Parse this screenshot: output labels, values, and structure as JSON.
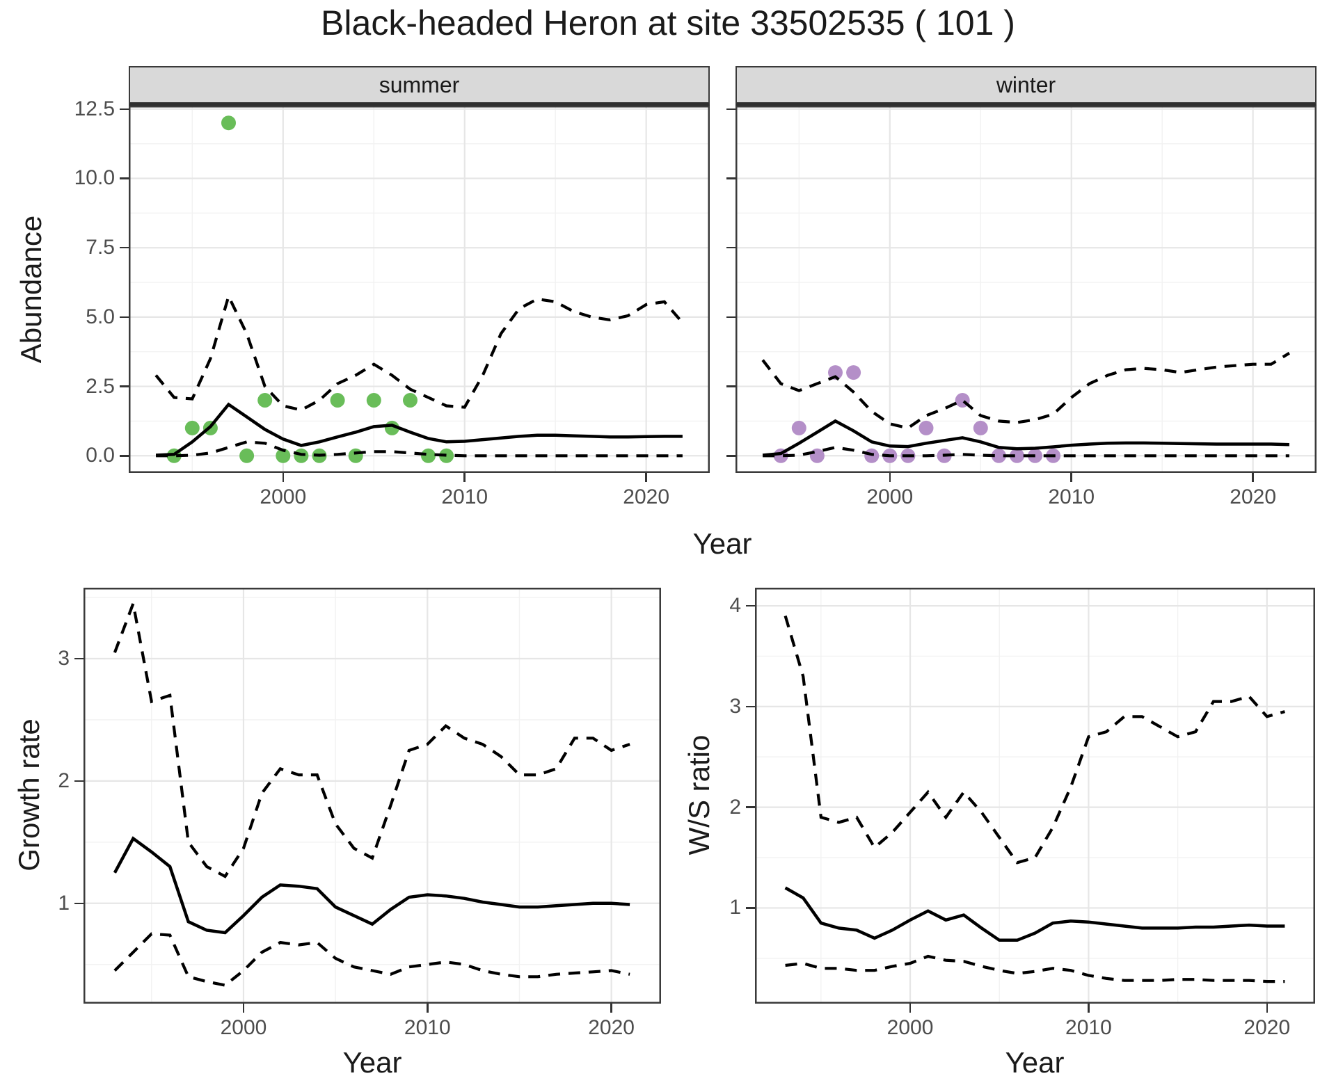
{
  "title": "Black-headed Heron at site 33502535 ( 101 )",
  "labels": {
    "facet_summer": "summer",
    "facet_winter": "winter",
    "y_axis_abundance": "Abundance",
    "y_axis_growth": "Growth rate",
    "y_axis_ws": "W/S ratio",
    "x_axis_top": "Year",
    "x_axis_growth": "Year",
    "x_axis_ws": "Year"
  },
  "colors": {
    "summer_points": "#69bd59",
    "winter_points": "#b48fc8",
    "line": "#000000",
    "strip_background": "#d9d9d9",
    "panel_border": "#3a3a3a",
    "grid_major": "#e6e6e6",
    "grid_minor": "#f2f2f2",
    "tick_text": "#4d4d4d"
  },
  "chart_data": [
    {
      "id": "abundance_summer",
      "type": "scatter",
      "facet": "summer",
      "xlabel": "Year",
      "ylabel": "Abundance",
      "xlim": [
        1991.5,
        2023.5
      ],
      "ylim": [
        -0.62,
        12.62
      ],
      "xticks": [
        2000,
        2010,
        2020
      ],
      "xtick_labels": [
        "2000",
        "2010",
        "2020"
      ],
      "xticks_minor": [
        1995,
        2005,
        2015
      ],
      "yticks": [
        0,
        2.5,
        5,
        7.5,
        10,
        12.5
      ],
      "ytick_labels": [
        "0.0",
        "2.5",
        "5.0",
        "7.5",
        "10.0",
        "12.5"
      ],
      "yticks_minor": [
        1.25,
        3.75,
        6.25,
        8.75,
        11.25
      ],
      "show_ytick_labels": true,
      "point_color": "#69bd59",
      "points": {
        "x": [
          1994,
          1995,
          1996,
          1997,
          1998,
          1999,
          2000,
          2001,
          2002,
          2003,
          2004,
          2005,
          2006,
          2007,
          2008,
          2009
        ],
        "y": [
          0,
          1,
          1,
          12,
          0,
          2,
          0,
          0,
          0,
          2,
          0,
          2,
          1,
          2,
          0,
          0
        ]
      },
      "series": [
        {
          "name": "mean",
          "style": "solid",
          "x": [
            1993,
            1994,
            1995,
            1996,
            1997,
            1998,
            1999,
            2000,
            2001,
            2002,
            2003,
            2004,
            2005,
            2006,
            2007,
            2008,
            2009,
            2010,
            2011,
            2012,
            2013,
            2014,
            2015,
            2016,
            2017,
            2018,
            2019,
            2020,
            2021,
            2022
          ],
          "y": [
            0.02,
            0.05,
            0.5,
            1.05,
            1.85,
            1.4,
            0.95,
            0.6,
            0.37,
            0.5,
            0.68,
            0.85,
            1.05,
            1.1,
            0.85,
            0.62,
            0.5,
            0.52,
            0.58,
            0.64,
            0.7,
            0.74,
            0.74,
            0.72,
            0.7,
            0.68,
            0.68,
            0.69,
            0.7,
            0.7
          ]
        },
        {
          "name": "upper_ci",
          "style": "dashed",
          "x": [
            1993,
            1994,
            1995,
            1996,
            1997,
            1998,
            1999,
            2000,
            2001,
            2002,
            2003,
            2004,
            2005,
            2006,
            2007,
            2008,
            2009,
            2010,
            2011,
            2012,
            2013,
            2014,
            2015,
            2016,
            2017,
            2018,
            2019,
            2020,
            2021,
            2022
          ],
          "y": [
            2.9,
            2.1,
            2.05,
            3.5,
            5.75,
            4.4,
            2.5,
            1.8,
            1.65,
            2.0,
            2.6,
            2.9,
            3.3,
            2.9,
            2.4,
            2.1,
            1.8,
            1.75,
            2.9,
            4.4,
            5.3,
            5.65,
            5.55,
            5.2,
            5.0,
            4.9,
            5.05,
            5.45,
            5.55,
            4.8
          ]
        },
        {
          "name": "lower_ci",
          "style": "dashed",
          "x": [
            1993,
            1994,
            1995,
            1996,
            1997,
            1998,
            1999,
            2000,
            2001,
            2002,
            2003,
            2004,
            2005,
            2006,
            2007,
            2008,
            2009,
            2010,
            2011,
            2012,
            2013,
            2014,
            2015,
            2016,
            2017,
            2018,
            2019,
            2020,
            2021,
            2022
          ],
          "y": [
            0,
            0,
            0.02,
            0.1,
            0.3,
            0.5,
            0.45,
            0.2,
            0.05,
            0.02,
            0.05,
            0.1,
            0.15,
            0.15,
            0.1,
            0.05,
            0.02,
            0,
            0,
            0,
            0,
            0,
            0,
            0,
            0,
            0,
            0,
            0,
            0,
            0
          ]
        }
      ]
    },
    {
      "id": "abundance_winter",
      "type": "scatter",
      "facet": "winter",
      "xlabel": "Year",
      "ylabel": "Abundance",
      "xlim": [
        1991.5,
        2023.5
      ],
      "ylim": [
        -0.62,
        12.62
      ],
      "xticks": [
        2000,
        2010,
        2020
      ],
      "xtick_labels": [
        "2000",
        "2010",
        "2020"
      ],
      "xticks_minor": [
        1995,
        2005,
        2015
      ],
      "yticks": [
        0,
        2.5,
        5,
        7.5,
        10,
        12.5
      ],
      "ytick_labels": [
        "0.0",
        "2.5",
        "5.0",
        "7.5",
        "10.0",
        "12.5"
      ],
      "yticks_minor": [
        1.25,
        3.75,
        6.25,
        8.75,
        11.25
      ],
      "show_ytick_labels": false,
      "point_color": "#b48fc8",
      "points": {
        "x": [
          1994,
          1995,
          1996,
          1997,
          1998,
          1999,
          2000,
          2001,
          2002,
          2003,
          2004,
          2005,
          2006,
          2007,
          2008,
          2009
        ],
        "y": [
          0,
          1,
          0,
          3,
          3,
          0,
          0,
          0,
          1,
          0,
          2,
          1,
          0,
          0,
          0,
          0
        ]
      },
      "series": [
        {
          "name": "mean",
          "style": "solid",
          "x": [
            1993,
            1994,
            1995,
            1996,
            1997,
            1998,
            1999,
            2000,
            2001,
            2002,
            2003,
            2004,
            2005,
            2006,
            2007,
            2008,
            2009,
            2010,
            2011,
            2012,
            2013,
            2014,
            2015,
            2016,
            2017,
            2018,
            2019,
            2020,
            2021,
            2022
          ],
          "y": [
            0.02,
            0.08,
            0.45,
            0.85,
            1.25,
            0.9,
            0.5,
            0.35,
            0.33,
            0.45,
            0.55,
            0.65,
            0.5,
            0.3,
            0.25,
            0.27,
            0.32,
            0.38,
            0.42,
            0.45,
            0.46,
            0.46,
            0.45,
            0.44,
            0.43,
            0.42,
            0.42,
            0.42,
            0.42,
            0.4
          ]
        },
        {
          "name": "upper_ci",
          "style": "dashed",
          "x": [
            1993,
            1994,
            1995,
            1996,
            1997,
            1998,
            1999,
            2000,
            2001,
            2002,
            2003,
            2004,
            2005,
            2006,
            2007,
            2008,
            2009,
            2010,
            2011,
            2012,
            2013,
            2014,
            2015,
            2016,
            2017,
            2018,
            2019,
            2020,
            2021,
            2022
          ],
          "y": [
            3.45,
            2.6,
            2.35,
            2.6,
            2.85,
            2.3,
            1.6,
            1.15,
            1.0,
            1.45,
            1.7,
            2.0,
            1.45,
            1.25,
            1.2,
            1.3,
            1.5,
            2.1,
            2.6,
            2.9,
            3.1,
            3.15,
            3.1,
            3.0,
            3.1,
            3.2,
            3.25,
            3.3,
            3.3,
            3.7
          ]
        },
        {
          "name": "lower_ci",
          "style": "dashed",
          "x": [
            1993,
            1994,
            1995,
            1996,
            1997,
            1998,
            1999,
            2000,
            2001,
            2002,
            2003,
            2004,
            2005,
            2006,
            2007,
            2008,
            2009,
            2010,
            2011,
            2012,
            2013,
            2014,
            2015,
            2016,
            2017,
            2018,
            2019,
            2020,
            2021,
            2022
          ],
          "y": [
            0,
            0,
            0.02,
            0.15,
            0.3,
            0.2,
            0.05,
            0,
            0,
            0,
            0.02,
            0.05,
            0.02,
            0,
            0,
            0,
            0,
            0,
            0,
            0,
            0,
            0,
            0,
            0,
            0,
            0,
            0,
            0,
            0,
            0
          ]
        }
      ]
    },
    {
      "id": "growth_rate",
      "type": "line",
      "xlabel": "Year",
      "ylabel": "Growth rate",
      "xlim": [
        1991.3,
        2022.7
      ],
      "ylim": [
        0.18,
        3.58
      ],
      "xticks": [
        2000,
        2010,
        2020
      ],
      "xtick_labels": [
        "2000",
        "2010",
        "2020"
      ],
      "xticks_minor": [
        1995,
        2005,
        2015
      ],
      "yticks": [
        1,
        2,
        3
      ],
      "ytick_labels": [
        "1",
        "2",
        "3"
      ],
      "yticks_minor": [
        0.5,
        1.5,
        2.5,
        3.5
      ],
      "show_ytick_labels": true,
      "point_color": "#000000",
      "points": {
        "x": [],
        "y": []
      },
      "series": [
        {
          "name": "mean",
          "style": "solid",
          "x": [
            1993,
            1994,
            1995,
            1996,
            1997,
            1998,
            1999,
            2000,
            2001,
            2002,
            2003,
            2004,
            2005,
            2006,
            2007,
            2008,
            2009,
            2010,
            2011,
            2012,
            2013,
            2014,
            2015,
            2016,
            2017,
            2018,
            2019,
            2020,
            2021
          ],
          "y": [
            1.25,
            1.53,
            1.42,
            1.3,
            0.85,
            0.78,
            0.76,
            0.9,
            1.05,
            1.15,
            1.14,
            1.12,
            0.97,
            0.9,
            0.83,
            0.95,
            1.05,
            1.07,
            1.06,
            1.04,
            1.01,
            0.99,
            0.97,
            0.97,
            0.98,
            0.99,
            1.0,
            1.0,
            0.99
          ]
        },
        {
          "name": "upper_ci",
          "style": "dashed",
          "x": [
            1993,
            1994,
            1995,
            1996,
            1997,
            1998,
            1999,
            2000,
            2001,
            2002,
            2003,
            2004,
            2005,
            2006,
            2007,
            2008,
            2009,
            2010,
            2011,
            2012,
            2013,
            2014,
            2015,
            2016,
            2017,
            2018,
            2019,
            2020,
            2021
          ],
          "y": [
            3.05,
            3.45,
            2.65,
            2.7,
            1.5,
            1.3,
            1.22,
            1.45,
            1.9,
            2.1,
            2.05,
            2.05,
            1.65,
            1.45,
            1.37,
            1.8,
            2.25,
            2.3,
            2.45,
            2.35,
            2.3,
            2.2,
            2.05,
            2.05,
            2.1,
            2.35,
            2.35,
            2.25,
            2.3
          ]
        },
        {
          "name": "lower_ci",
          "style": "dashed",
          "x": [
            1993,
            1994,
            1995,
            1996,
            1997,
            1998,
            1999,
            2000,
            2001,
            2002,
            2003,
            2004,
            2005,
            2006,
            2007,
            2008,
            2009,
            2010,
            2011,
            2012,
            2013,
            2014,
            2015,
            2016,
            2017,
            2018,
            2019,
            2020,
            2021
          ],
          "y": [
            0.45,
            0.6,
            0.75,
            0.74,
            0.4,
            0.36,
            0.33,
            0.45,
            0.6,
            0.68,
            0.66,
            0.68,
            0.55,
            0.48,
            0.45,
            0.42,
            0.48,
            0.5,
            0.52,
            0.5,
            0.45,
            0.42,
            0.4,
            0.4,
            0.42,
            0.43,
            0.44,
            0.45,
            0.42
          ]
        }
      ]
    },
    {
      "id": "ws_ratio",
      "type": "line",
      "xlabel": "Year",
      "ylabel": "W/S ratio",
      "xlim": [
        1991.3,
        2022.7
      ],
      "ylim": [
        0.05,
        4.18
      ],
      "xticks": [
        2000,
        2010,
        2020
      ],
      "xtick_labels": [
        "2000",
        "2010",
        "2020"
      ],
      "xticks_minor": [
        1995,
        2005,
        2015
      ],
      "yticks": [
        1,
        2,
        3,
        4
      ],
      "ytick_labels": [
        "1",
        "2",
        "3",
        "4"
      ],
      "yticks_minor": [
        0.5,
        1.5,
        2.5,
        3.5
      ],
      "show_ytick_labels": true,
      "point_color": "#000000",
      "points": {
        "x": [],
        "y": []
      },
      "series": [
        {
          "name": "mean",
          "style": "solid",
          "x": [
            1993,
            1994,
            1995,
            1996,
            1997,
            1998,
            1999,
            2000,
            2001,
            2002,
            2003,
            2004,
            2005,
            2006,
            2007,
            2008,
            2009,
            2010,
            2011,
            2012,
            2013,
            2014,
            2015,
            2016,
            2017,
            2018,
            2019,
            2020,
            2021
          ],
          "y": [
            1.2,
            1.1,
            0.85,
            0.8,
            0.78,
            0.7,
            0.78,
            0.88,
            0.97,
            0.88,
            0.93,
            0.8,
            0.68,
            0.68,
            0.75,
            0.85,
            0.87,
            0.86,
            0.84,
            0.82,
            0.8,
            0.8,
            0.8,
            0.81,
            0.81,
            0.82,
            0.83,
            0.82,
            0.82
          ]
        },
        {
          "name": "upper_ci",
          "style": "dashed",
          "x": [
            1993,
            1994,
            1995,
            1996,
            1997,
            1998,
            1999,
            2000,
            2001,
            2002,
            2003,
            2004,
            2005,
            2006,
            2007,
            2008,
            2009,
            2010,
            2011,
            2012,
            2013,
            2014,
            2015,
            2016,
            2017,
            2018,
            2019,
            2020,
            2021
          ],
          "y": [
            3.9,
            3.3,
            1.9,
            1.85,
            1.9,
            1.6,
            1.75,
            1.95,
            2.15,
            1.9,
            2.15,
            1.95,
            1.7,
            1.45,
            1.5,
            1.8,
            2.2,
            2.7,
            2.75,
            2.9,
            2.9,
            2.8,
            2.7,
            2.75,
            3.05,
            3.05,
            3.1,
            2.9,
            2.95
          ]
        },
        {
          "name": "lower_ci",
          "style": "dashed",
          "x": [
            1993,
            1994,
            1995,
            1996,
            1997,
            1998,
            1999,
            2000,
            2001,
            2002,
            2003,
            2004,
            2005,
            2006,
            2007,
            2008,
            2009,
            2010,
            2011,
            2012,
            2013,
            2014,
            2015,
            2016,
            2017,
            2018,
            2019,
            2020,
            2021
          ],
          "y": [
            0.43,
            0.45,
            0.4,
            0.4,
            0.38,
            0.38,
            0.42,
            0.45,
            0.52,
            0.48,
            0.47,
            0.42,
            0.38,
            0.35,
            0.37,
            0.4,
            0.38,
            0.33,
            0.3,
            0.28,
            0.28,
            0.28,
            0.29,
            0.29,
            0.28,
            0.28,
            0.28,
            0.27,
            0.27
          ]
        }
      ]
    }
  ]
}
